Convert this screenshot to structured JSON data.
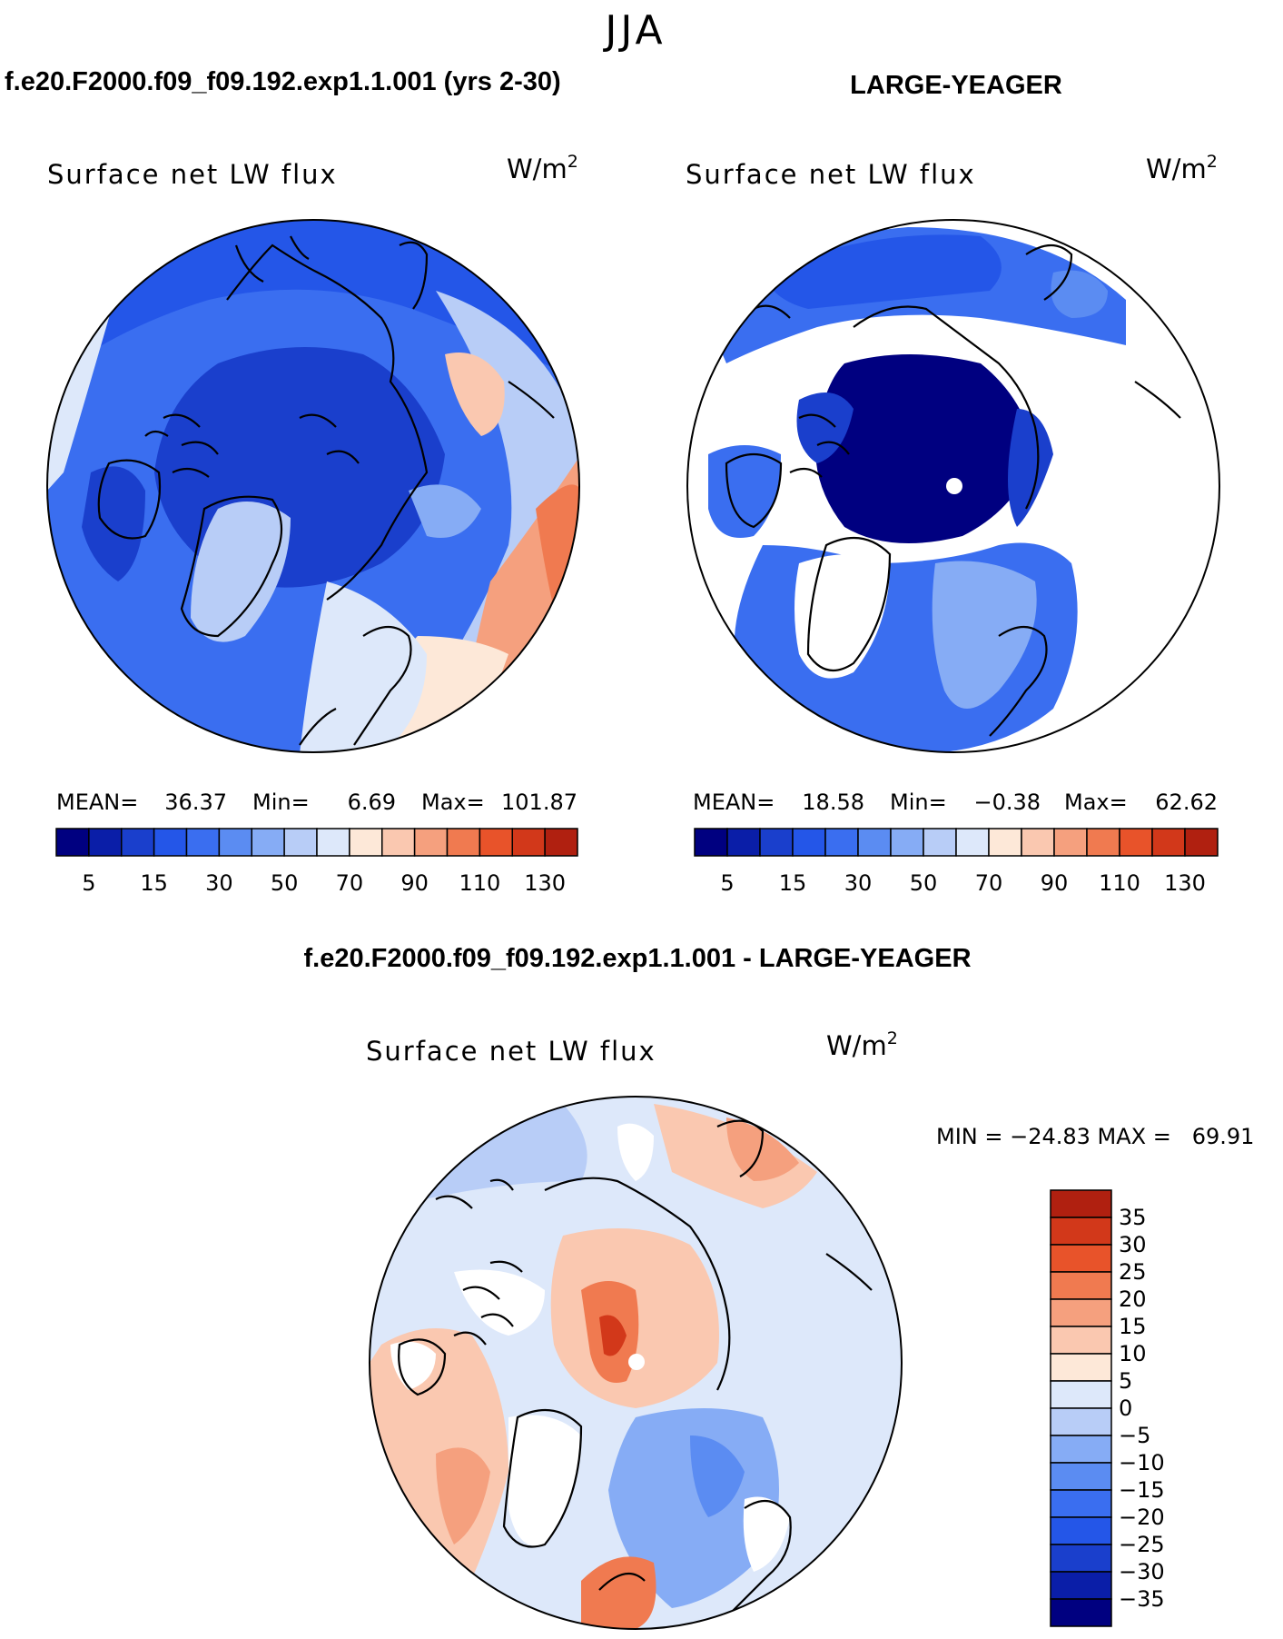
{
  "page_title": "JJA",
  "colors": {
    "seq_palette": [
      "#000080",
      "#0a1ea8",
      "#1a3fcc",
      "#2456e8",
      "#3a6ef0",
      "#5b8cf2",
      "#86acf5",
      "#b8cdf7",
      "#dde8fa",
      "#fde8d8",
      "#fac8b0",
      "#f5a07e",
      "#f07a50",
      "#e8532a",
      "#d2381a",
      "#b02010",
      "#800000"
    ],
    "diff_palette": [
      "#000080",
      "#0a1ea8",
      "#1a3fcc",
      "#2456e8",
      "#3a6ef0",
      "#5b8cf2",
      "#86acf5",
      "#b8cdf7",
      "#dde8fa",
      "#fde8d8",
      "#fac8b0",
      "#f5a07e",
      "#f07a50",
      "#e8532a",
      "#d2381a",
      "#b02010",
      "#800000"
    ]
  },
  "chart_data": [
    {
      "type": "heatmap",
      "projection": "north-polar-stereographic",
      "header": "f.e20.F2000.f09_f09.192.exp1.1.001 (yrs 2-30)",
      "title": "Surface net LW flux",
      "units_base": "W/m",
      "units_exp": "2",
      "stats": {
        "mean_label": "MEAN=",
        "mean": "36.37",
        "min_label": "Min=",
        "min": "6.69",
        "max_label": "Max=",
        "max": "101.87"
      },
      "colorbar_ticks": [
        "5",
        "15",
        "30",
        "50",
        "70",
        "90",
        "110",
        "130"
      ],
      "colorbar_bins": 16
    },
    {
      "type": "heatmap",
      "projection": "north-polar-stereographic",
      "header": "LARGE-YEAGER",
      "title": "Surface net LW flux",
      "units_base": "W/m",
      "units_exp": "2",
      "stats": {
        "mean_label": "MEAN=",
        "mean": "18.58",
        "min_label": "Min=",
        "min": "−0.38",
        "max_label": "Max=",
        "max": "62.62"
      },
      "colorbar_ticks": [
        "5",
        "15",
        "30",
        "50",
        "70",
        "90",
        "110",
        "130"
      ],
      "colorbar_bins": 16
    },
    {
      "type": "heatmap",
      "projection": "north-polar-stereographic",
      "header": "f.e20.F2000.f09_f09.192.exp1.1.001 - LARGE-YEAGER",
      "title": "Surface net LW flux",
      "units_base": "W/m",
      "units_exp": "2",
      "stats_text": "MIN = −24.83 MAX =   69.91",
      "colorbar_ticks": [
        "35",
        "30",
        "25",
        "20",
        "15",
        "10",
        "5",
        "0",
        "−5",
        "−10",
        "−15",
        "−20",
        "−25",
        "−30",
        "−35"
      ],
      "colorbar_bins": 16
    }
  ]
}
